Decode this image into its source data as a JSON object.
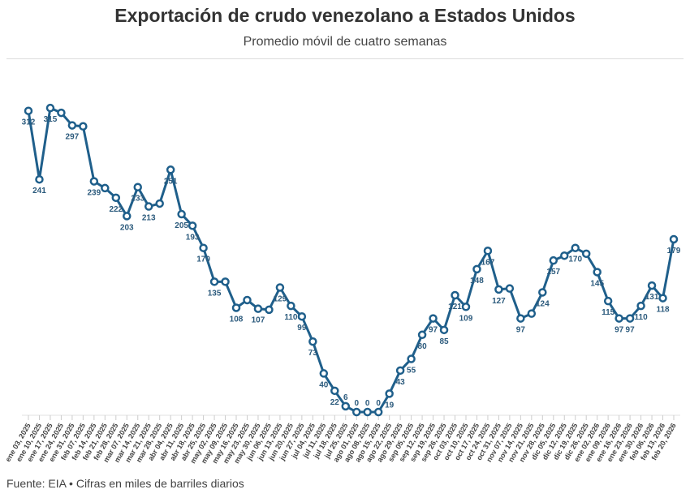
{
  "chart_data": {
    "type": "line",
    "title": "Exportación de crudo venezolano a Estados Unidos",
    "subtitle": "Promedio móvil de cuatro semanas",
    "source": "Fuente: EIA • Cifras en miles de barriles diarios",
    "xlabel": "",
    "ylabel": "",
    "ylim": [
      0,
      320
    ],
    "grid": false,
    "color": "#1f5f8b",
    "label_color": "#2b5a7c",
    "categories": [
      "ene 03, 2025",
      "ene 10, 2025",
      "ene 17, 2025",
      "ene 24, 2025",
      "ene 31, 2025",
      "feb 07, 2025",
      "feb 14, 2025",
      "feb 21, 2025",
      "feb 28, 2025",
      "mar 07, 2025",
      "mar 14, 2025",
      "mar 21, 2025",
      "mar 28, 2025",
      "abr 04, 2025",
      "abr 11, 2025",
      "abr 18, 2025",
      "abr 25, 2025",
      "may 02, 2025",
      "may 09, 2025",
      "may 16, 2025",
      "may 23, 2025",
      "may 30, 2025",
      "jun 06, 2025",
      "jun 13, 2025",
      "jun 20, 2025",
      "jun 27, 2025",
      "jul 04, 2025",
      "jul 11, 2025",
      "jul 18, 2025",
      "jul 25, 2025",
      "ago 01, 2025",
      "ago 08, 2025",
      "ago 15, 2025",
      "ago 22, 2025",
      "ago 29, 2025",
      "sep 05, 2025",
      "sep 12, 2025",
      "sep 19, 2025",
      "sep 26, 2025",
      "oct 03, 2025",
      "oct 10, 2025",
      "oct 17, 2025",
      "oct 24, 2025",
      "oct 31, 2025",
      "nov 07, 2025",
      "nov 14, 2025",
      "nov 21, 2025",
      "nov 28, 2025",
      "dic 05, 2025",
      "dic 12, 2025",
      "dic 19, 2025",
      "dic 26, 2025",
      "ene 02, 2026",
      "ene 09, 2026",
      "ene 16, 2026",
      "ene 23, 2026",
      "ene 30, 2026",
      "feb 06, 2026",
      "feb 13, 2026",
      "feb 20, 2026"
    ],
    "values": [
      312,
      241,
      315,
      310,
      297,
      296,
      239,
      232,
      222,
      203,
      233,
      213,
      216,
      251,
      205,
      193,
      170,
      135,
      135,
      108,
      116,
      107,
      106,
      129,
      110,
      99,
      73,
      40,
      22,
      6,
      0,
      0,
      0,
      19,
      43,
      55,
      80,
      97,
      85,
      121,
      109,
      148,
      167,
      127,
      128,
      97,
      102,
      124,
      157,
      162,
      170,
      164,
      145,
      115,
      97,
      97,
      110,
      131,
      118,
      179
    ],
    "labels": [
      "312",
      "241",
      "315",
      null,
      "297",
      null,
      "239",
      null,
      "222",
      "203",
      "233",
      "213",
      null,
      "251",
      "205",
      "193",
      "170",
      "135",
      null,
      "108",
      null,
      "107",
      null,
      "129",
      "110",
      "99",
      "73",
      "40",
      "22",
      "6",
      "0",
      "0",
      "0",
      "19",
      "43",
      "55",
      "80",
      "97",
      "85",
      "121",
      "109",
      "148",
      "167",
      "127",
      null,
      "97",
      null,
      "124",
      "157",
      null,
      "170",
      null,
      "145",
      "115",
      "97",
      "97",
      "110",
      "131",
      "118",
      "179"
    ]
  }
}
